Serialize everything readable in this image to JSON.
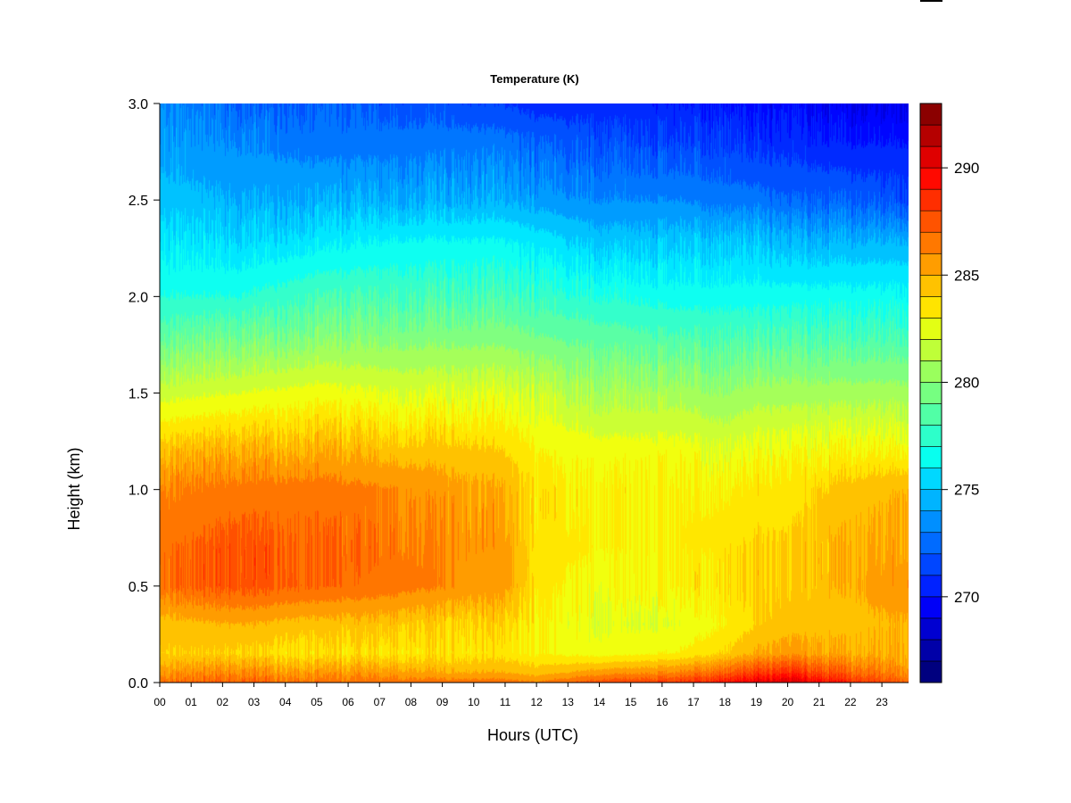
{
  "chart_data": {
    "type": "heatmap",
    "title": "Temperature (K)",
    "xlabel": "Hours (UTC)",
    "ylabel": "Height (km)",
    "x_ticks": [
      "00",
      "01",
      "02",
      "03",
      "04",
      "05",
      "06",
      "07",
      "08",
      "09",
      "10",
      "11",
      "12",
      "13",
      "14",
      "15",
      "16",
      "17",
      "18",
      "19",
      "20",
      "21",
      "22",
      "23"
    ],
    "xlim": [
      0,
      23.85
    ],
    "y_ticks": [
      "0.0",
      "0.5",
      "1.0",
      "1.5",
      "2.0",
      "2.5",
      "3.0"
    ],
    "ylim": [
      0,
      3.0
    ],
    "colorbar": {
      "label": "Temperature (K)",
      "range": [
        266,
        293
      ],
      "ticks": [
        "270",
        "275",
        "280",
        "285",
        "290"
      ],
      "colors": [
        "#00007F",
        "#0000A8",
        "#0000D1",
        "#0000F7",
        "#0022FF",
        "#0046FF",
        "#006BFF",
        "#008FFF",
        "#00B4FF",
        "#00D8FF",
        "#08FFEF",
        "#2DFFCA",
        "#51FFA6",
        "#76FF81",
        "#9AFF5D",
        "#BFFF38",
        "#E3FF14",
        "#FFE400",
        "#FFC200",
        "#FF9D00",
        "#FF7800",
        "#FF5300",
        "#FF2E00",
        "#FF0900",
        "#DF0000",
        "#B50000",
        "#8B0000"
      ]
    },
    "temperature_profiles_K": {
      "heights_km": [
        0.0,
        0.05,
        0.15,
        0.3,
        0.5,
        0.7,
        1.0,
        1.2,
        1.5,
        1.8,
        2.0,
        2.3,
        2.5,
        2.8,
        3.0
      ],
      "hours": [
        0,
        2.5,
        5,
        7.5,
        9,
        11,
        12,
        14,
        16.5,
        18,
        19,
        20,
        22,
        23.85
      ],
      "values": [
        [
          286.5,
          285.5,
          284.0,
          284.5,
          286.5,
          286.5,
          286.0,
          284.5,
          281.5,
          278.5,
          277.0,
          275.5,
          274.5,
          273.5,
          273.0
        ],
        [
          287.0,
          286.0,
          284.0,
          285.0,
          287.5,
          287.5,
          286.5,
          285.0,
          282.0,
          279.0,
          277.0,
          275.0,
          274.0,
          273.0,
          272.0
        ],
        [
          286.5,
          285.5,
          283.5,
          284.5,
          287.0,
          287.0,
          286.5,
          285.0,
          282.5,
          279.5,
          278.0,
          275.5,
          274.0,
          272.5,
          272.0
        ],
        [
          286.5,
          285.5,
          283.5,
          284.5,
          286.5,
          286.5,
          286.0,
          284.5,
          282.0,
          279.5,
          278.0,
          276.0,
          274.0,
          272.5,
          271.5
        ],
        [
          286.5,
          285.0,
          283.5,
          284.0,
          286.0,
          286.0,
          285.5,
          284.5,
          282.0,
          279.5,
          278.0,
          276.0,
          274.0,
          272.5,
          271.5
        ],
        [
          286.5,
          285.0,
          283.5,
          284.0,
          285.5,
          285.5,
          285.0,
          284.0,
          282.0,
          279.5,
          278.0,
          276.0,
          274.0,
          272.5,
          271.0
        ],
        [
          286.0,
          284.5,
          283.0,
          283.0,
          283.5,
          283.5,
          283.5,
          283.0,
          281.5,
          279.0,
          277.5,
          275.5,
          273.5,
          272.0,
          270.5
        ],
        [
          287.5,
          285.5,
          282.5,
          282.0,
          282.5,
          283.0,
          283.0,
          282.5,
          280.5,
          278.5,
          277.0,
          274.5,
          273.0,
          271.5,
          270.5
        ],
        [
          288.0,
          286.0,
          283.0,
          282.0,
          283.0,
          283.0,
          283.0,
          282.5,
          280.5,
          278.0,
          276.5,
          274.5,
          273.0,
          271.0,
          270.0
        ],
        [
          289.0,
          287.0,
          284.0,
          283.0,
          283.5,
          283.5,
          283.0,
          282.0,
          280.0,
          278.0,
          276.5,
          274.5,
          272.5,
          271.0,
          270.0
        ],
        [
          290.0,
          288.0,
          285.0,
          284.0,
          284.0,
          284.0,
          283.5,
          282.5,
          280.5,
          278.0,
          276.5,
          274.5,
          272.5,
          270.5,
          269.5
        ],
        [
          290.5,
          288.5,
          285.5,
          284.5,
          284.0,
          284.0,
          283.5,
          282.5,
          280.5,
          278.0,
          276.5,
          274.0,
          272.0,
          270.5,
          269.5
        ],
        [
          288.5,
          287.0,
          285.0,
          284.5,
          285.0,
          285.0,
          284.5,
          283.0,
          280.5,
          278.0,
          276.5,
          274.0,
          272.0,
          270.0,
          269.0
        ],
        [
          287.0,
          286.0,
          285.0,
          285.0,
          286.0,
          285.5,
          285.0,
          283.0,
          280.5,
          278.0,
          276.5,
          274.0,
          271.5,
          270.0,
          269.0
        ]
      ]
    }
  }
}
